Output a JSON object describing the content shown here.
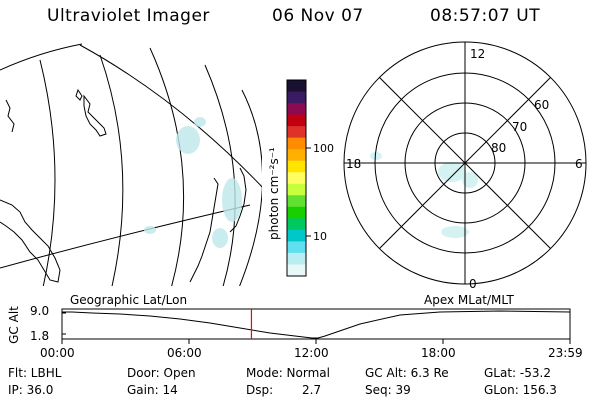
{
  "header": {
    "title": "Ultraviolet Imager",
    "date": "06 Nov 07",
    "time": "08:57:07 UT"
  },
  "colorbar": {
    "label": "photon cm⁻²s⁻¹",
    "ticks": [
      "100",
      "10"
    ],
    "colors": [
      "#1a1030",
      "#3a1a60",
      "#8c0a50",
      "#c00010",
      "#e0302a",
      "#ff8c00",
      "#ffb000",
      "#ffe400",
      "#fffd60",
      "#c8ff3c",
      "#60e030",
      "#18d000",
      "#00c860",
      "#00c8c8",
      "#60e0ee",
      "#b8eef2",
      "#e8f8f8"
    ]
  },
  "polar": {
    "lat_labels": [
      "60",
      "70",
      "80"
    ],
    "mlt_labels": {
      "top": "12",
      "left": "18",
      "right": "6",
      "bottom": "0"
    }
  },
  "timeline": {
    "axis_label": "GC Alt",
    "left_label": "Geographic Lat/Lon",
    "right_label": "Apex MLat/MLT",
    "y_ticks": [
      "9.0",
      "1.8"
    ],
    "x_ticks": [
      "00:00",
      "06:00",
      "12:00",
      "18:00",
      "23:59"
    ],
    "current_time_hours": 8.95,
    "marker_color": "#ff0000"
  },
  "info": {
    "flt": "Flt: LBHL",
    "ip": "IP: 36.0",
    "door": "Door: Open",
    "gain": "Gain: 14",
    "mode": "Mode: Normal",
    "dsp_label": "Dsp:",
    "dsp_value": "2.7",
    "gc_alt": "GC Alt: 6.3 Re",
    "seq": "Seq: 39",
    "glat": "GLat: -53.2",
    "glon": "GLon: 156.3"
  }
}
